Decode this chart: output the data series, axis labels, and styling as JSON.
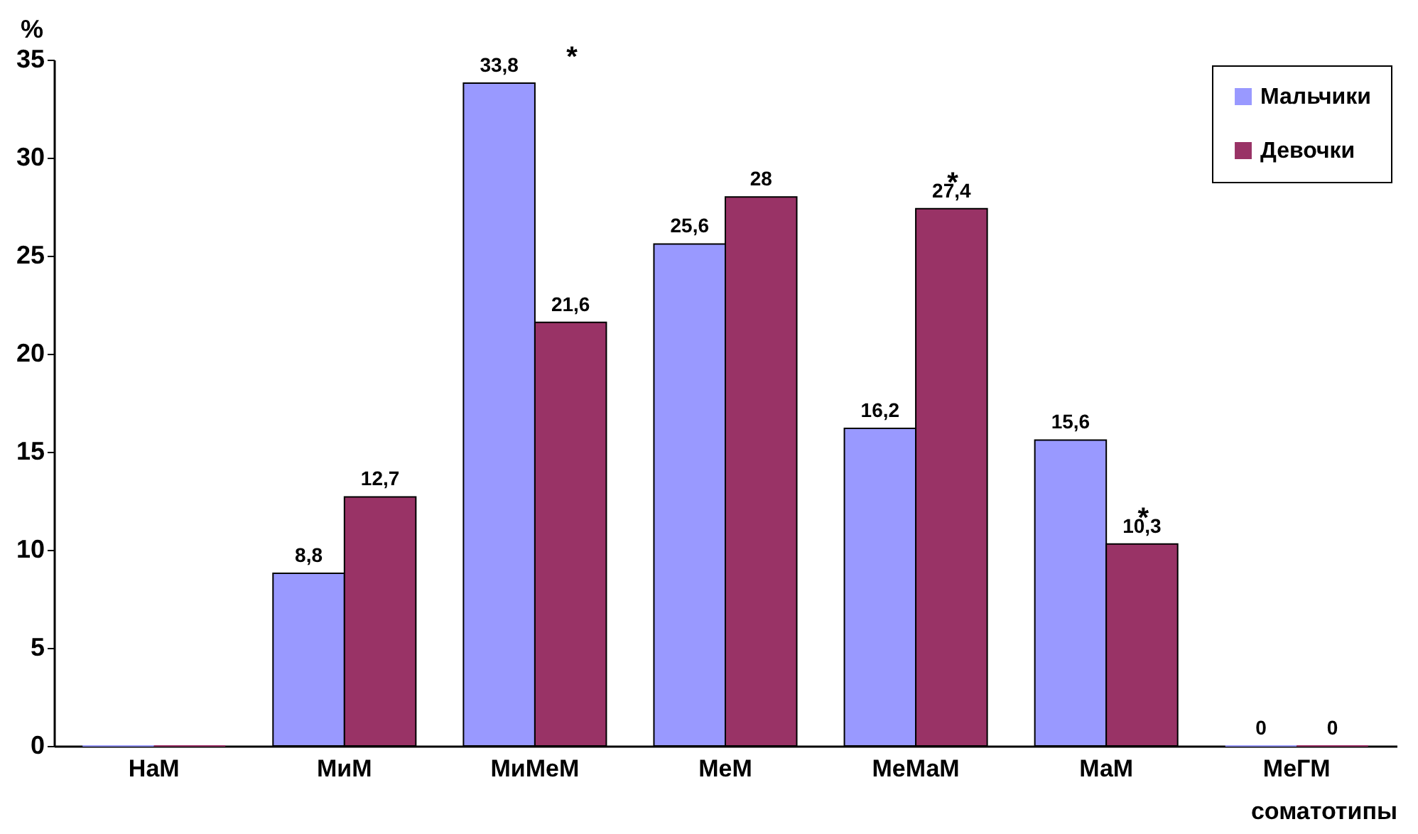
{
  "chart_data": {
    "type": "bar",
    "ylabel": "%",
    "xlabel": "соматотипы",
    "categories": [
      "НаМ",
      "МиМ",
      "МиМеМ",
      "МеМ",
      "МеМаМ",
      "МаМ",
      "МеГМ"
    ],
    "series": [
      {
        "name": "Мальчики",
        "color": "#9999ff",
        "values": [
          0,
          8.8,
          33.8,
          25.6,
          16.2,
          15.6,
          0
        ],
        "value_labels": [
          null,
          "8,8",
          "33,8",
          "25,6",
          "16,2",
          "15,6",
          "0"
        ]
      },
      {
        "name": "Девочки",
        "color": "#993366",
        "values": [
          0,
          12.7,
          21.6,
          28,
          27.4,
          10.3,
          0
        ],
        "value_labels": [
          null,
          "12,7",
          "21,6",
          "28",
          "27,4",
          "10,3",
          "0"
        ]
      }
    ],
    "annotations": [
      {
        "text": "*",
        "x": "МиМеМ",
        "y": 33.8
      },
      {
        "text": "*",
        "x": "МеМаМ",
        "y": 27.4
      },
      {
        "text": "*",
        "x": "МаМ",
        "y": 10.3
      }
    ],
    "ylim": [
      0,
      35
    ],
    "yticks": [
      0,
      5,
      10,
      15,
      20,
      25,
      30,
      35
    ],
    "legend": "top right"
  }
}
